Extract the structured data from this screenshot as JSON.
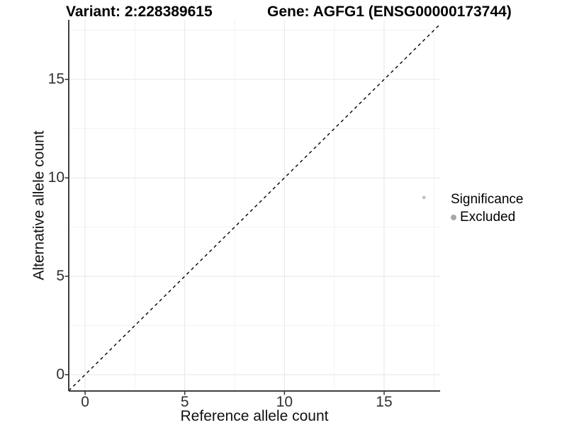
{
  "chart_data": {
    "type": "scatter",
    "title_left": "Variant: 2:228389615",
    "title_right": "Gene: AGFG1 (ENSG00000173744)",
    "xlabel": "Reference allele count",
    "ylabel": "Alternative allele count",
    "x_ticks": [
      0,
      5,
      10,
      15
    ],
    "y_ticks": [
      0,
      5,
      10,
      15
    ],
    "x_minor_ticks": [
      2.5,
      7.5,
      12.5,
      17.5
    ],
    "y_minor_ticks": [
      2.5,
      7.5,
      12.5,
      17.5
    ],
    "xlim": [
      -0.82,
      17.81
    ],
    "ylim": [
      -0.83,
      18.03
    ],
    "grid": "major and minor, light grey, white background",
    "points": [
      {
        "x": 17,
        "y": 9,
        "significance": "Excluded"
      }
    ],
    "abline": {
      "slope": 1,
      "intercept": 0,
      "style": "dashed",
      "color": "#000000"
    },
    "legend": {
      "title": "Significance",
      "position": "right",
      "items": [
        {
          "label": "Excluded",
          "color": "#a8a8a8"
        }
      ]
    },
    "colors": {
      "point": "#bdbdbd",
      "legend_dot": "#a8a8a8",
      "grid_major": "#e6e6e6",
      "grid_minor": "#f2f2f2",
      "axis_line": "#404040",
      "tick_mark": "#333333",
      "abline": "#000000",
      "background": "#ffffff"
    }
  }
}
